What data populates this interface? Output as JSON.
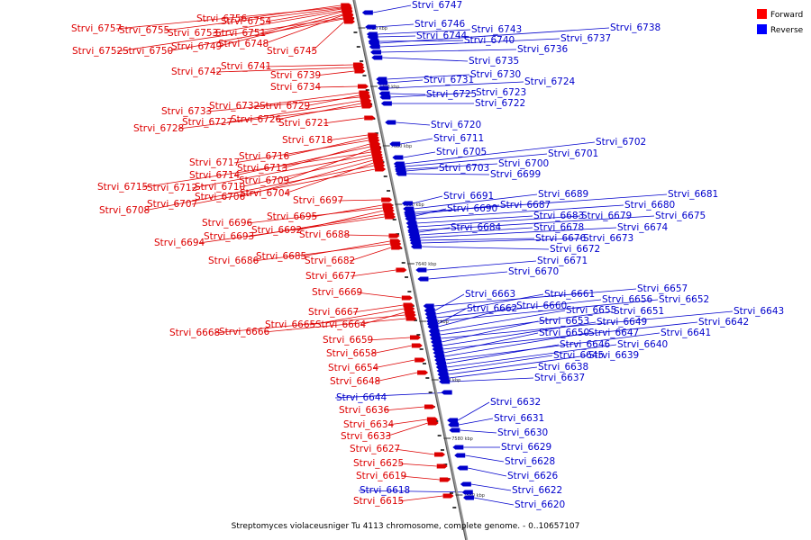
{
  "caption": "Streptomyces violaceusniger Tu 4113 chromosome, complete genome. - 0..10657107",
  "legend": [
    {
      "label": "Forward",
      "color": "#ff0000"
    },
    {
      "label": "Reverse",
      "color": "#0000ff"
    }
  ],
  "colors": {
    "forward": "#dd0000",
    "reverse": "#0000cc",
    "axis": "#999999"
  },
  "scale_ticks": [
    "7720 kbp",
    "7700 kbp",
    "7680 kbp",
    "7660 kbp",
    "7640 kbp",
    "7620 kbp",
    "7600 kbp",
    "7580 kbp",
    "7560 kbp"
  ],
  "forward_genes": [
    "Strvi_6757",
    "Strvi_6756",
    "Strvi_6755",
    "Strvi_6754",
    "Strvi_6753",
    "Strvi_6751",
    "Strvi_6749",
    "Strvi_6748",
    "Strvi_6752",
    "Strvi_6750",
    "Strvi_6745",
    "Strvi_6741",
    "Strvi_6742",
    "Strvi_6739",
    "Strvi_6734",
    "Strvi_6732",
    "Strvi_6729",
    "Strvi_6733",
    "Strvi_6727",
    "Strvi_6726",
    "Strvi_6728",
    "Strvi_6721",
    "Strvi_6718",
    "Strvi_6716",
    "Strvi_6717",
    "Strvi_6713",
    "Strvi_6714",
    "Strvi_6709",
    "Strvi_6715",
    "Strvi_6712",
    "Strvi_6710",
    "Strvi_6706",
    "Strvi_6704",
    "Strvi_6708",
    "Strvi_6707",
    "Strvi_6697",
    "Strvi_6695",
    "Strvi_6696",
    "Strvi_6692",
    "Strvi_6693",
    "Strvi_6694",
    "Strvi_6688",
    "Strvi_6685",
    "Strvi_6686",
    "Strvi_6682",
    "Strvi_6677",
    "Strvi_6669",
    "Strvi_6667",
    "Strvi_6665",
    "Strvi_6664",
    "Strvi_6668",
    "Strvi_6666",
    "Strvi_6659",
    "Strvi_6658",
    "Strvi_6654",
    "Strvi_6648",
    "Strvi_6636",
    "Strvi_6634",
    "Strvi_6633",
    "Strvi_6627",
    "Strvi_6625",
    "Strvi_6619",
    "Strvi_6615"
  ],
  "reverse_genes": [
    "Strvi_6747",
    "Strvi_6746",
    "Strvi_6743",
    "Strvi_6744",
    "Strvi_6740",
    "Strvi_6738",
    "Strvi_6737",
    "Strvi_6736",
    "Strvi_6735",
    "Strvi_6730",
    "Strvi_6731",
    "Strvi_6724",
    "Strvi_6725",
    "Strvi_6723",
    "Strvi_6722",
    "Strvi_6720",
    "Strvi_6711",
    "Strvi_6705",
    "Strvi_6702",
    "Strvi_6701",
    "Strvi_6700",
    "Strvi_6703",
    "Strvi_6699",
    "Strvi_6691",
    "Strvi_6689",
    "Strvi_6681",
    "Strvi_6687",
    "Strvi_6690",
    "Strvi_6680",
    "Strvi_6683",
    "Strvi_6679",
    "Strvi_6675",
    "Strvi_6684",
    "Strvi_6678",
    "Strvi_6674",
    "Strvi_6676",
    "Strvi_6673",
    "Strvi_6672",
    "Strvi_6671",
    "Strvi_6670",
    "Strvi_6657",
    "Strvi_6663",
    "Strvi_6661",
    "Strvi_6656",
    "Strvi_6652",
    "Strvi_6662",
    "Strvi_6660",
    "Strvi_6655",
    "Strvi_6651",
    "Strvi_6643",
    "Strvi_6653",
    "Strvi_6649",
    "Strvi_6642",
    "Strvi_6650",
    "Strvi_6647",
    "Strvi_6641",
    "Strvi_6646",
    "Strvi_6640",
    "Strvi_6645",
    "Strvi_6639",
    "Strvi_6638",
    "Strvi_6637",
    "Strvi_6644",
    "Strvi_6632",
    "Strvi_6631",
    "Strvi_6630",
    "Strvi_6629",
    "Strvi_6628",
    "Strvi_6626",
    "Strvi_6622",
    "Strvi_6620",
    "Strvi_6618"
  ]
}
